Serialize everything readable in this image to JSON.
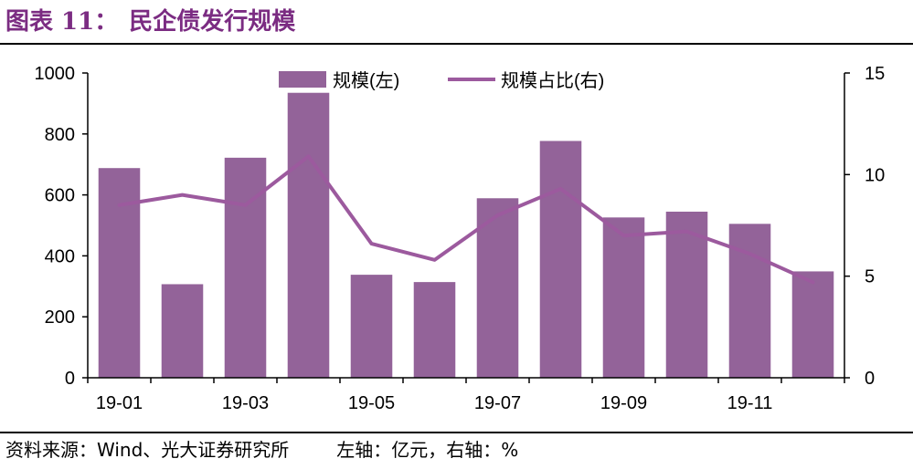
{
  "header": {
    "figure_label": "图表 11：",
    "title": "民企债发行规模"
  },
  "footer": {
    "source": "资料来源：Wind、光大证券研究所",
    "note": "左轴：亿元，右轴：%"
  },
  "colors": {
    "bar": "#936399",
    "line": "#9c5a9e",
    "title": "#7b2c82"
  },
  "chart_data": {
    "type": "bar",
    "categories": [
      "19-01",
      "19-02",
      "19-03",
      "19-04",
      "19-05",
      "19-06",
      "19-07",
      "19-08",
      "19-09",
      "19-10",
      "19-11",
      "19-12"
    ],
    "x_tick_labels": [
      "19-01",
      "",
      "19-03",
      "",
      "19-05",
      "",
      "19-07",
      "",
      "19-09",
      "",
      "19-11",
      ""
    ],
    "series": [
      {
        "name": "规模(左)",
        "type": "bar",
        "axis": "left",
        "values": [
          688,
          307,
          722,
          935,
          338,
          314,
          589,
          777,
          526,
          545,
          505,
          349
        ]
      },
      {
        "name": "规模占比(右)",
        "type": "line",
        "axis": "right",
        "values": [
          8.5,
          9.0,
          8.5,
          10.9,
          6.6,
          5.8,
          8.0,
          9.3,
          7.0,
          7.2,
          6.1,
          4.7
        ]
      }
    ],
    "ylim_left": [
      0,
      1000
    ],
    "yticks_left": [
      0,
      200,
      400,
      600,
      800,
      1000
    ],
    "ylim_right": [
      0,
      15
    ],
    "yticks_right": [
      0,
      5,
      10,
      15
    ],
    "grid": false,
    "legend_position": "top-center"
  }
}
